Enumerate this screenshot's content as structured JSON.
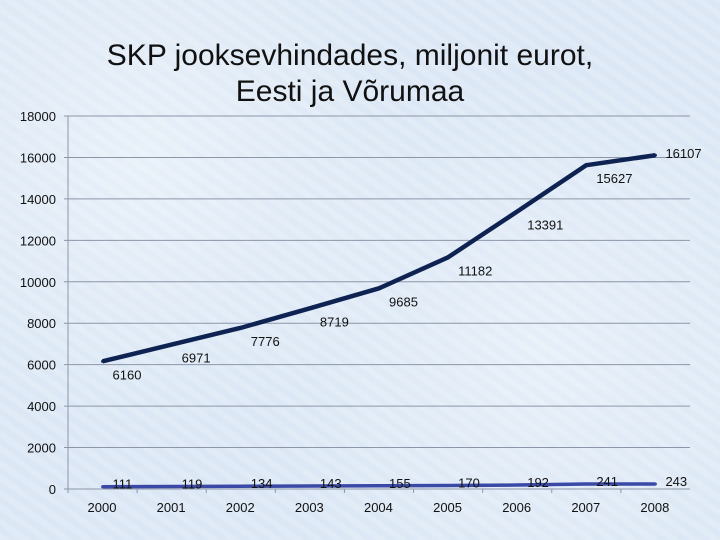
{
  "chart_data": {
    "type": "line",
    "title_line1": "SKP jooksevhindades, miljonit eurot,",
    "title_line2": "Eesti ja Võrumaa",
    "categories": [
      "2000",
      "2001",
      "2002",
      "2003",
      "2004",
      "2005",
      "2006",
      "2007",
      "2008"
    ],
    "y_ticks": [
      "0",
      "2000",
      "4000",
      "6000",
      "8000",
      "10000",
      "12000",
      "14000",
      "16000",
      "18000"
    ],
    "ylim": [
      0,
      18000
    ],
    "grid": true,
    "series": [
      {
        "values": [
          6160,
          6971,
          7776,
          8719,
          9685,
          11182,
          13391,
          15627,
          16107
        ],
        "labels": [
          "6160",
          "6971",
          "7776",
          "8719",
          "9685",
          "11182",
          "13391",
          "15627",
          "16107"
        ],
        "color": "#0f2352"
      },
      {
        "values": [
          111,
          119,
          134,
          143,
          155,
          170,
          192,
          241,
          243
        ],
        "labels": [
          "111",
          "119",
          "134",
          "143",
          "155",
          "170",
          "192",
          "241",
          "243"
        ],
        "color": "#3a49a6"
      }
    ]
  }
}
